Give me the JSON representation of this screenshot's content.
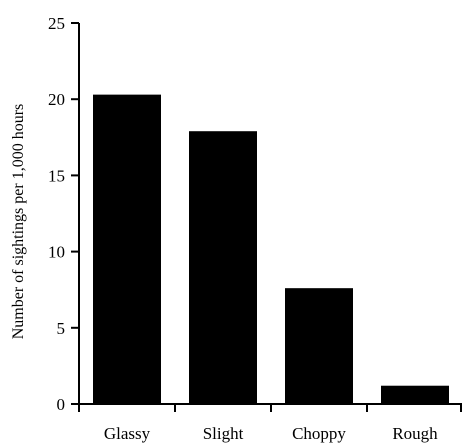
{
  "chart_data": {
    "type": "bar",
    "categories": [
      "Glassy",
      "Slight",
      "Choppy",
      "Rough"
    ],
    "values": [
      20.3,
      17.9,
      7.6,
      1.2
    ],
    "title": "",
    "xlabel": "",
    "ylabel": "Number of sightings per 1,000 hours",
    "ylim": [
      0,
      25
    ],
    "yticks": [
      0,
      5,
      10,
      15,
      20,
      25
    ],
    "grid": false,
    "legend": "none",
    "colors": {
      "bar": "#000000",
      "axis": "#000000",
      "background": "#ffffff"
    }
  }
}
